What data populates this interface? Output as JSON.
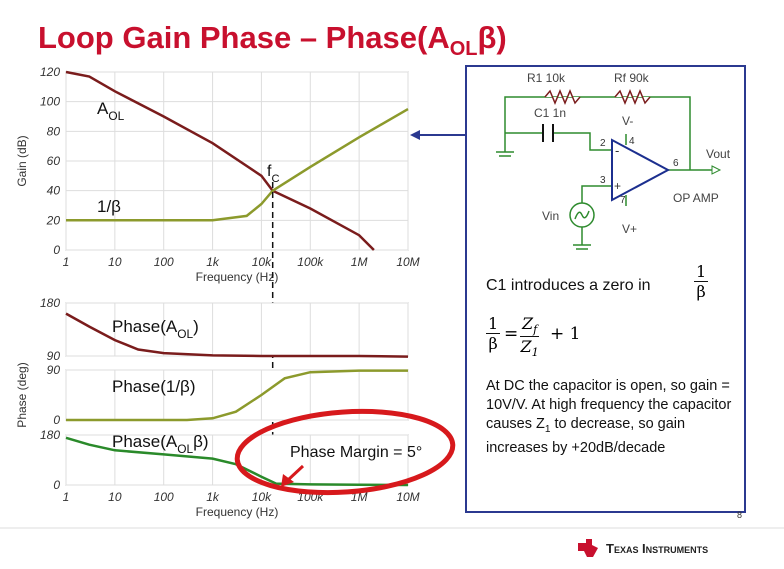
{
  "slide": {
    "title": {
      "text": "Loop Gain Phase – Phase(A",
      "sub": "OL",
      "end": "β)"
    },
    "page": "8",
    "logo": "Texas Instruments"
  },
  "chart_data": [
    {
      "type": "line",
      "log_x": true,
      "grid": true,
      "xlim": [
        1,
        10000000
      ],
      "xticks": [
        1,
        10,
        100,
        {
          "value": 1000,
          "label": "1k"
        },
        {
          "value": 10000,
          "label": "10k"
        },
        {
          "value": 100000,
          "label": "100k"
        },
        {
          "value": 1000000,
          "label": "1M"
        },
        {
          "value": 10000000,
          "label": "10M"
        }
      ],
      "xlabel": "Frequency (Hz)",
      "ylabel": "Gain (dB)",
      "ylim": [
        0,
        120
      ],
      "yticks": [
        0,
        20,
        40,
        60,
        80,
        100,
        120
      ],
      "series": [
        {
          "name": "A",
          "name_sub": "OL",
          "color": "#7a1c1c",
          "x": [
            1,
            3,
            10,
            100,
            1000,
            10000,
            17000,
            100000,
            1000000,
            2000000
          ],
          "values": [
            120,
            117,
            107,
            90,
            72,
            50,
            40,
            28,
            10,
            0
          ]
        },
        {
          "name": "1/β",
          "color": "#8c9a2c",
          "x": [
            1,
            1000,
            5000,
            10000,
            17000,
            100000,
            1000000,
            10000000
          ],
          "values": [
            20,
            20,
            23,
            31,
            40,
            56,
            76,
            95
          ]
        }
      ],
      "annotation": {
        "text": "f",
        "sub": "C"
      },
      "crossover": 17000
    },
    {
      "type": "line",
      "log_x": true,
      "grid": true,
      "xlim": [
        1,
        10000000
      ],
      "ylim": [
        90,
        180
      ],
      "yticks": [
        90,
        180
      ],
      "series": [
        {
          "name": "Phase(A",
          "name_sub": "OL",
          "name_end": ")",
          "color": "#7a1c1c",
          "x": [
            1,
            3,
            10,
            30,
            100,
            1000,
            10000,
            100000,
            1000000,
            10000000
          ],
          "values": [
            162,
            140,
            117,
            101,
            95,
            91,
            90,
            90,
            90,
            89
          ]
        }
      ]
    },
    {
      "type": "line",
      "log_x": true,
      "grid": true,
      "xlim": [
        1,
        10000000
      ],
      "ylim": [
        0,
        90
      ],
      "yticks": [
        0,
        90
      ],
      "series": [
        {
          "name": "Phase(1/β)",
          "color": "#8c9a2c",
          "x": [
            1,
            300,
            1000,
            3000,
            10000,
            30000,
            100000,
            1000000,
            10000000
          ],
          "values": [
            0,
            0,
            3,
            15,
            45,
            75,
            86,
            89,
            89
          ]
        }
      ]
    },
    {
      "type": "line",
      "log_x": true,
      "grid": true,
      "xlim": [
        1,
        10000000
      ],
      "xticks": [
        1,
        10,
        100,
        {
          "value": 1000,
          "label": "1k"
        },
        {
          "value": 10000,
          "label": "10k"
        },
        {
          "value": 100000,
          "label": "100k"
        },
        {
          "value": 1000000,
          "label": "1M"
        },
        {
          "value": 10000000,
          "label": "10M"
        }
      ],
      "xlabel": "Frequency (Hz)",
      "ylabel": "Phase (deg)",
      "ylim": [
        0,
        180
      ],
      "yticks": [
        0,
        180
      ],
      "series": [
        {
          "name": "Phase(A",
          "name_sub": "OL",
          "name_end": "β)",
          "color": "#2a8a2a",
          "x": [
            1,
            3,
            10,
            100,
            1000,
            3000,
            10000,
            20000,
            100000,
            1000000,
            10000000
          ],
          "values": [
            170,
            145,
            125,
            110,
            95,
            75,
            30,
            5,
            2,
            1,
            0
          ]
        }
      ],
      "annotation": "Phase Margin = 5°"
    }
  ],
  "circuit": {
    "r1": "R1 10k",
    "rf": "Rf 90k",
    "c1": "C1 1n",
    "vminus": "V-",
    "vplus": "V+",
    "pin2": "2",
    "pin3": "3",
    "pin4": "4",
    "pin7": "7",
    "pin6": "6",
    "minus": "-",
    "plus": "+",
    "vout": "Vout",
    "opamp": "OP AMP",
    "vin": "Vin"
  },
  "notes": {
    "intro": "C1 introduces a zero in",
    "frac_num": "1",
    "frac_den": "β",
    "eq": {
      "lhs_num": "1",
      "lhs_den": "β",
      "equals": "=",
      "z": "Z",
      "zf_sub": "f",
      "z1": "Z",
      "z1_sub": "1",
      "plus": "+ 1"
    },
    "para": {
      "text": "At DC the capacitor is open, so gain = 10V/V. At high frequency the capacitor causes Z",
      "sub": "1",
      "end": " to decrease, so gain increases by +20dB/decade"
    }
  }
}
